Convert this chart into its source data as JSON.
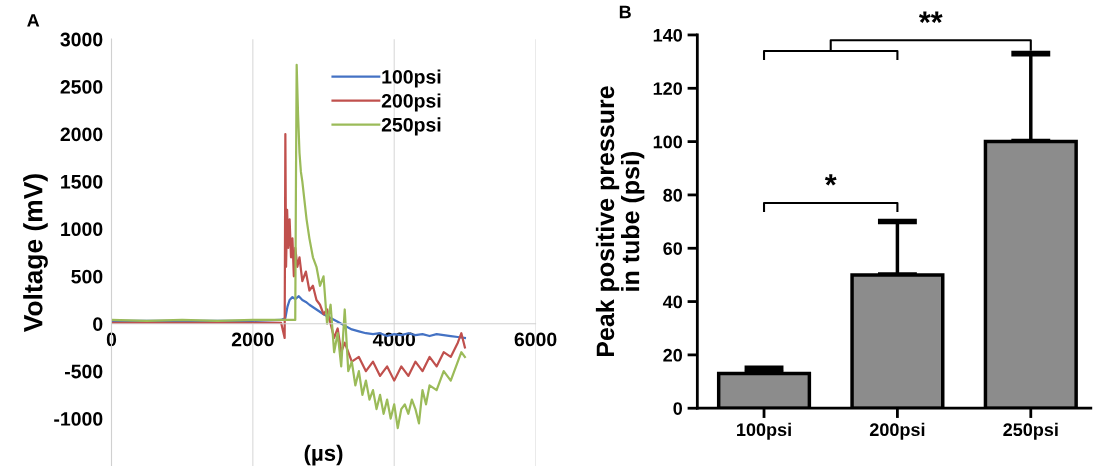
{
  "chart_data": [
    {
      "type": "line",
      "title": "A",
      "xlabel": "(µs)",
      "ylabel": "Voltage (mV)",
      "xlim": [
        0,
        6000
      ],
      "xticks": [
        0,
        2000,
        4000,
        6000
      ],
      "ylim": [
        -1500,
        3000
      ],
      "yticks": [
        -1000,
        -500,
        0,
        500,
        1000,
        1500,
        2000,
        2500,
        3000
      ],
      "grid": "x",
      "legend": "top",
      "line_style": "solid",
      "marker": "none",
      "series": [
        {
          "name": "100psi",
          "color": "#4472c4",
          "x": [
            0,
            500,
            1000,
            1500,
            2000,
            2400,
            2460,
            2490,
            2520,
            2560,
            2600,
            2650,
            2700,
            2750,
            2800,
            2900,
            3000,
            3100,
            3200,
            3300,
            3400,
            3500,
            3600,
            3700,
            3800,
            3900,
            4000,
            4100,
            4200,
            4300,
            4400,
            4500,
            4600,
            4700,
            4800,
            4900,
            5000
          ],
          "values": [
            30,
            30,
            30,
            30,
            30,
            40,
            60,
            180,
            250,
            280,
            260,
            290,
            250,
            230,
            200,
            150,
            100,
            60,
            20,
            -20,
            -60,
            -80,
            -100,
            -110,
            -100,
            -130,
            -110,
            -120,
            -100,
            -120,
            -110,
            -130,
            -110,
            -120,
            -130,
            -140,
            -150
          ]
        },
        {
          "name": "200psi",
          "color": "#c0504d",
          "x": [
            0,
            500,
            1000,
            1500,
            2000,
            2400,
            2450,
            2460,
            2470,
            2485,
            2500,
            2520,
            2540,
            2560,
            2580,
            2600,
            2630,
            2660,
            2700,
            2750,
            2800,
            2850,
            2900,
            2950,
            3000,
            3050,
            3100,
            3150,
            3200,
            3250,
            3300,
            3400,
            3500,
            3600,
            3700,
            3800,
            3900,
            4000,
            4100,
            4200,
            4300,
            4400,
            4500,
            4600,
            4700,
            4800,
            4900,
            4950,
            5000
          ],
          "values": [
            10,
            10,
            10,
            10,
            10,
            10,
            -150,
            2000,
            600,
            1200,
            800,
            1100,
            700,
            900,
            500,
            800,
            600,
            700,
            450,
            550,
            350,
            400,
            250,
            200,
            100,
            150,
            0,
            -150,
            -50,
            -300,
            -200,
            -400,
            -350,
            -500,
            -400,
            -550,
            -450,
            -600,
            -450,
            -550,
            -400,
            -500,
            -350,
            -450,
            -300,
            -350,
            -200,
            -100,
            -250
          ]
        },
        {
          "name": "250psi",
          "color": "#9bbb59",
          "x": [
            0,
            500,
            1000,
            1500,
            2000,
            2400,
            2600,
            2610,
            2620,
            2640,
            2660,
            2680,
            2700,
            2730,
            2760,
            2800,
            2850,
            2900,
            2950,
            3000,
            3050,
            3100,
            3150,
            3200,
            3250,
            3300,
            3350,
            3400,
            3450,
            3500,
            3550,
            3600,
            3650,
            3700,
            3750,
            3800,
            3850,
            3900,
            3950,
            4000,
            4050,
            4100,
            4150,
            4200,
            4250,
            4300,
            4350,
            4400,
            4450,
            4500,
            4600,
            4700,
            4800,
            4900,
            4950,
            5000
          ],
          "values": [
            40,
            30,
            40,
            30,
            40,
            40,
            40,
            1500,
            2730,
            2200,
            1800,
            1600,
            1500,
            1300,
            1100,
            900,
            700,
            600,
            400,
            500,
            0,
            200,
            -300,
            -100,
            -450,
            150,
            -500,
            -400,
            -650,
            -500,
            -750,
            -600,
            -800,
            -700,
            -900,
            -750,
            -950,
            -800,
            -1000,
            -850,
            -1100,
            -900,
            -850,
            -950,
            -800,
            -900,
            -1050,
            -700,
            -850,
            -650,
            -700,
            -500,
            -600,
            -400,
            -300,
            -350
          ]
        }
      ]
    },
    {
      "type": "bar",
      "title": "B",
      "ylabel": "Peak positive pressure\nin tube (psi)",
      "categories": [
        "100psi",
        "200psi",
        "250psi"
      ],
      "values": [
        13,
        50,
        100
      ],
      "errors": [
        [
          13,
          15
        ],
        [
          50,
          70
        ],
        [
          100,
          133
        ]
      ],
      "color": "#8c8c8c",
      "ylim": [
        0,
        140
      ],
      "yticks": [
        0,
        20,
        40,
        60,
        80,
        100,
        120,
        140
      ],
      "grid": false,
      "annotations": [
        "*",
        "**"
      ]
    }
  ]
}
